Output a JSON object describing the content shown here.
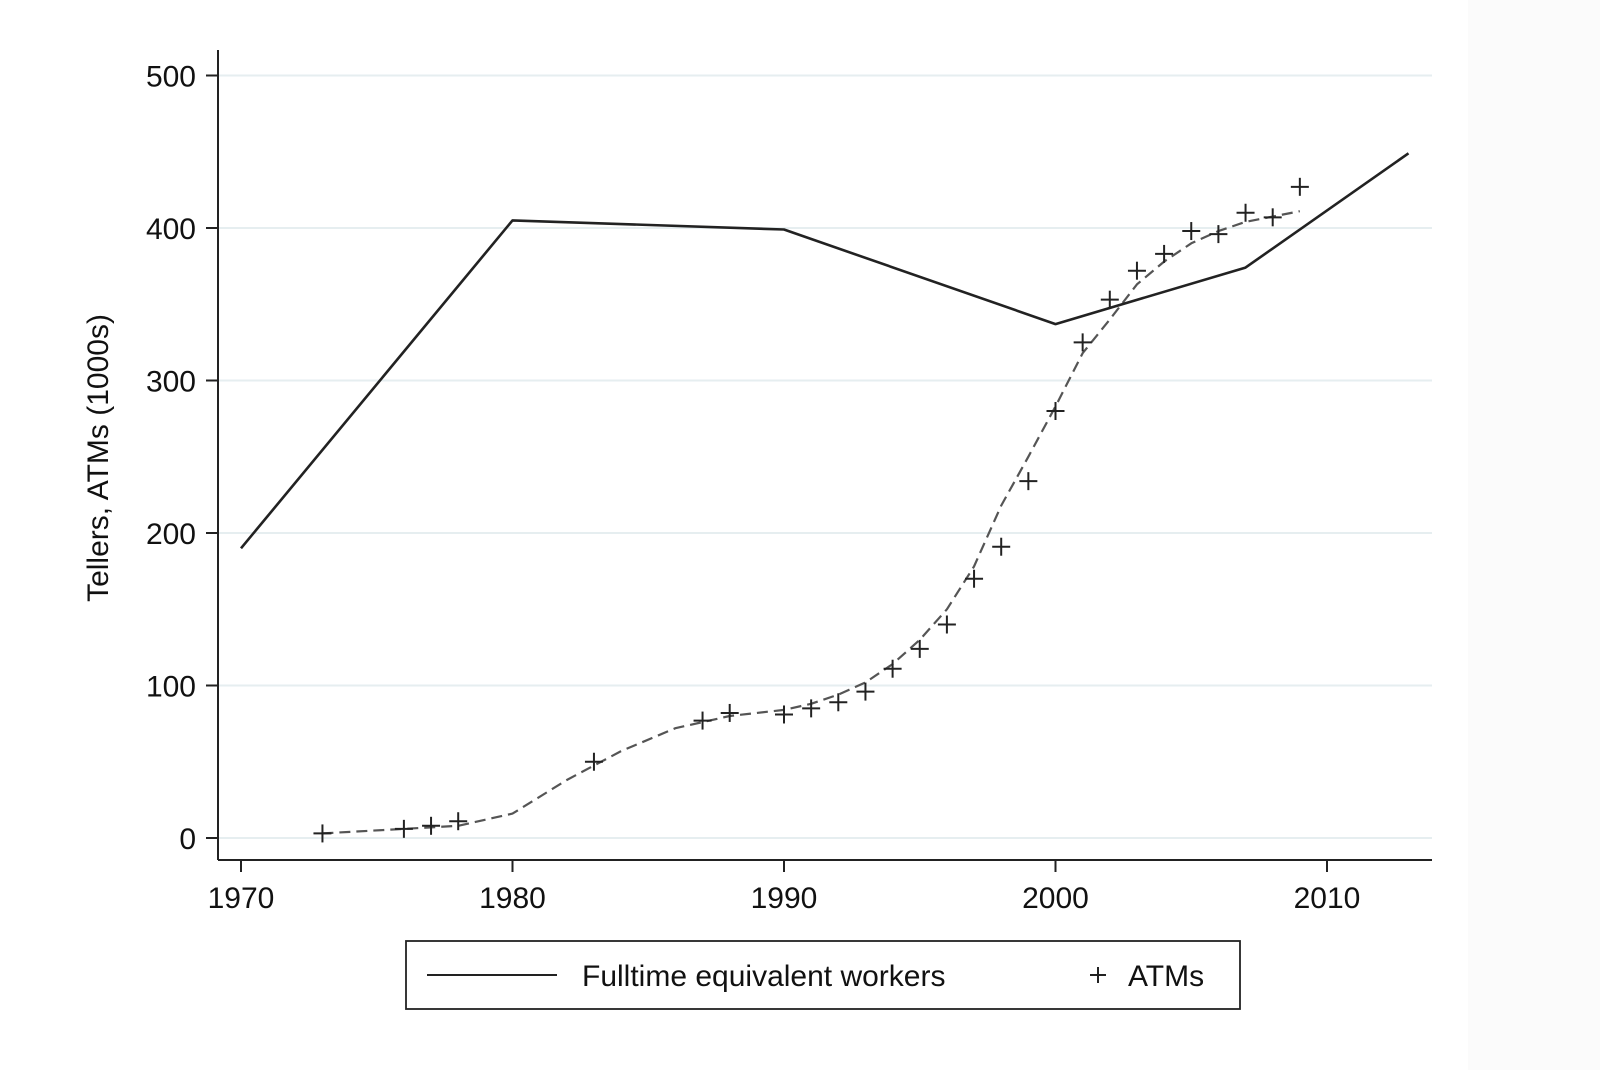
{
  "chart_data": {
    "type": "line",
    "title": "",
    "xlabel": "",
    "ylabel": "Tellers, ATMs (1000s)",
    "xlim": [
      1969,
      2014
    ],
    "ylim": [
      -14,
      516
    ],
    "x_ticks": [
      1970,
      1980,
      1990,
      2000,
      2010
    ],
    "y_ticks": [
      0,
      100,
      200,
      300,
      400,
      500
    ],
    "grid": true,
    "legend_position": "bottom",
    "series": [
      {
        "name": "Fulltime equivalent workers",
        "style": "solid line",
        "color": "#222222",
        "points": [
          [
            1970,
            190
          ],
          [
            1980,
            405
          ],
          [
            1990,
            399
          ],
          [
            2000,
            337
          ],
          [
            2007,
            374
          ],
          [
            2013,
            449
          ]
        ]
      },
      {
        "name": "ATMs",
        "style": "plus markers",
        "color": "#222222",
        "points": [
          [
            1973,
            3
          ],
          [
            1976,
            6
          ],
          [
            1977,
            8
          ],
          [
            1978,
            11
          ],
          [
            1983,
            50
          ],
          [
            1987,
            77
          ],
          [
            1988,
            82
          ],
          [
            1990,
            81
          ],
          [
            1991,
            85
          ],
          [
            1992,
            89
          ],
          [
            1993,
            96
          ],
          [
            1994,
            111
          ],
          [
            1995,
            124
          ],
          [
            1996,
            140
          ],
          [
            1997,
            170
          ],
          [
            1998,
            191
          ],
          [
            1999,
            234
          ],
          [
            2000,
            280
          ],
          [
            2001,
            325
          ],
          [
            2002,
            353
          ],
          [
            2003,
            372
          ],
          [
            2004,
            383
          ],
          [
            2005,
            398
          ],
          [
            2006,
            396
          ],
          [
            2007,
            410
          ],
          [
            2008,
            407
          ],
          [
            2009,
            427
          ]
        ]
      },
      {
        "style": "dashed smoothed line",
        "color": "#555555",
        "points": [
          [
            1973,
            3
          ],
          [
            1976,
            6
          ],
          [
            1978,
            8
          ],
          [
            1980,
            16
          ],
          [
            1982,
            38
          ],
          [
            1984,
            57
          ],
          [
            1986,
            72
          ],
          [
            1988,
            80
          ],
          [
            1990,
            84
          ],
          [
            1991,
            88
          ],
          [
            1992,
            94
          ],
          [
            1993,
            102
          ],
          [
            1994,
            114
          ],
          [
            1995,
            130
          ],
          [
            1996,
            150
          ],
          [
            1997,
            178
          ],
          [
            1998,
            218
          ],
          [
            1999,
            250
          ],
          [
            2000,
            283
          ],
          [
            2001,
            318
          ],
          [
            2002,
            340
          ],
          [
            2003,
            363
          ],
          [
            2004,
            378
          ],
          [
            2005,
            390
          ],
          [
            2006,
            398
          ],
          [
            2007,
            404
          ],
          [
            2009,
            411
          ]
        ]
      }
    ]
  }
}
